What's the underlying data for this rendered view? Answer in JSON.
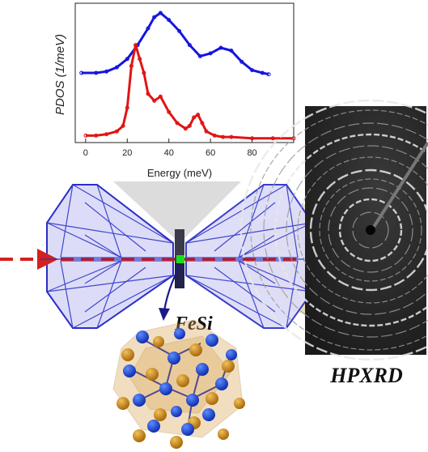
{
  "chart_data": {
    "type": "line",
    "xlabel": "Energy (meV)",
    "ylabel": "PDOS (1/meV)",
    "x_ticks": [
      "0",
      "20",
      "40",
      "60",
      "80"
    ],
    "xlim": [
      -5,
      100
    ],
    "grid": false,
    "series": [
      {
        "color": "#1515e0",
        "x": [
          -2,
          5,
          10,
          15,
          20,
          25,
          30,
          33,
          36,
          40,
          45,
          50,
          55,
          60,
          65,
          70,
          75,
          80,
          85,
          88
        ],
        "y": [
          0.5,
          0.5,
          0.51,
          0.54,
          0.6,
          0.7,
          0.82,
          0.9,
          0.93,
          0.88,
          0.8,
          0.7,
          0.62,
          0.64,
          0.68,
          0.66,
          0.58,
          0.52,
          0.5,
          0.49
        ]
      },
      {
        "color": "#e01515",
        "x": [
          0,
          5,
          10,
          15,
          18,
          20,
          22,
          24,
          26,
          28,
          30,
          33,
          36,
          40,
          44,
          48,
          50,
          52,
          54,
          56,
          58,
          62,
          66,
          70,
          80,
          90,
          100
        ],
        "y": [
          0.05,
          0.05,
          0.06,
          0.08,
          0.12,
          0.25,
          0.55,
          0.7,
          0.6,
          0.5,
          0.35,
          0.3,
          0.33,
          0.22,
          0.14,
          0.1,
          0.12,
          0.18,
          0.2,
          0.14,
          0.08,
          0.05,
          0.04,
          0.04,
          0.03,
          0.03,
          0.03
        ]
      }
    ]
  },
  "labels": {
    "sample": "FeSi",
    "technique": "HPXRD"
  },
  "colors": {
    "anvil": "#2a2ec8",
    "beam": "#d42020",
    "atom_fe": "#c98a12",
    "atom_si": "#1a4fd8",
    "polyhedra": "#d9a04a"
  }
}
